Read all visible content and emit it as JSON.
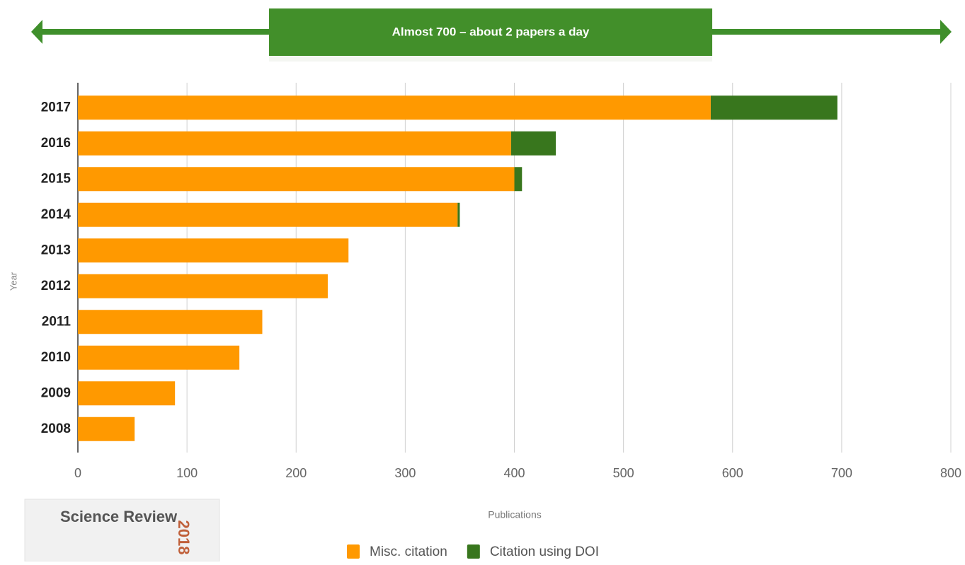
{
  "banner": "Almost 700 – about 2 papers a day",
  "logo": {
    "name": "Science Review",
    "year": "2018"
  },
  "chart_data": {
    "type": "stacked-bar-horizontal",
    "y_label": "Year",
    "x_label": "Publications",
    "categories": [
      "2017",
      "2016",
      "2015",
      "2014",
      "2013",
      "2012",
      "2011",
      "2010",
      "2009",
      "2008"
    ],
    "series": [
      {
        "name": "Misc. citation",
        "color": "#ff9900",
        "values": [
          580,
          397,
          400,
          348,
          248,
          229,
          169,
          148,
          89,
          52
        ]
      },
      {
        "name": "Citation using DOI",
        "color": "#38761d",
        "values": [
          116,
          41,
          7,
          2,
          0,
          0,
          0,
          0,
          0,
          0
        ]
      }
    ],
    "xlim": [
      0,
      800
    ],
    "xticks": [
      0,
      100,
      200,
      300,
      400,
      500,
      600,
      700,
      800
    ],
    "grid": true
  }
}
